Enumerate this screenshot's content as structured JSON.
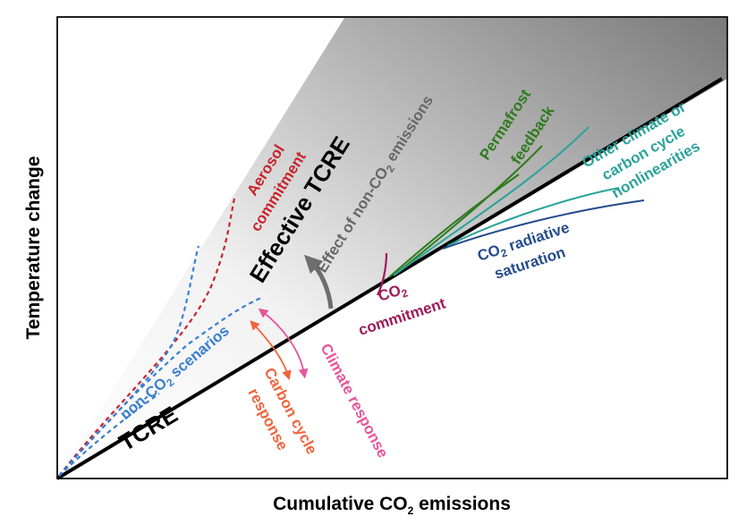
{
  "axes": {
    "x_title_pre": "Cumulative CO",
    "x_title_sub": "2",
    "x_title_post": " emissions",
    "y_title": "Temperature change"
  },
  "labels": {
    "tcre": "TCRE",
    "effective_tcre": "Effective TCRE",
    "effect_non_co2_pre": "Effect of non-CO",
    "effect_non_co2_sub": "2",
    "effect_non_co2_post": " emissions",
    "aerosol_1": "Aerosol",
    "aerosol_2": "commitment",
    "non_co2_pre": "non-CO",
    "non_co2_sub": "2",
    "non_co2_post": " scenarios",
    "carbon_cycle_1": "Carbon cycle",
    "carbon_cycle_2": "response",
    "climate_response": "Climate response",
    "co2_commit_pre": "CO",
    "co2_commit_sub": "2",
    "co2_commit_2": "commitment",
    "co2_rad_pre": "CO",
    "co2_rad_sub": "2",
    "co2_rad_post": " radiative",
    "co2_rad_2": "saturation",
    "permafrost_1": "Permafrost",
    "permafrost_2": "feedback",
    "other_1": "Other climate or",
    "other_2": "carbon cycle",
    "other_3": "nonlinearities"
  },
  "colors": {
    "tcre_line": "#000000",
    "effect_arrow": "#6e6e6e",
    "aerosol": "#c8232c",
    "non_co2": "#3a7fce",
    "carbon_cycle": "#f0643c",
    "climate_response": "#e6559b",
    "co2_commitment": "#a01a5a",
    "co2_saturation": "#244c8c",
    "permafrost": "#2f7a1e",
    "other_nonlinearities": "#2aa39a"
  }
}
